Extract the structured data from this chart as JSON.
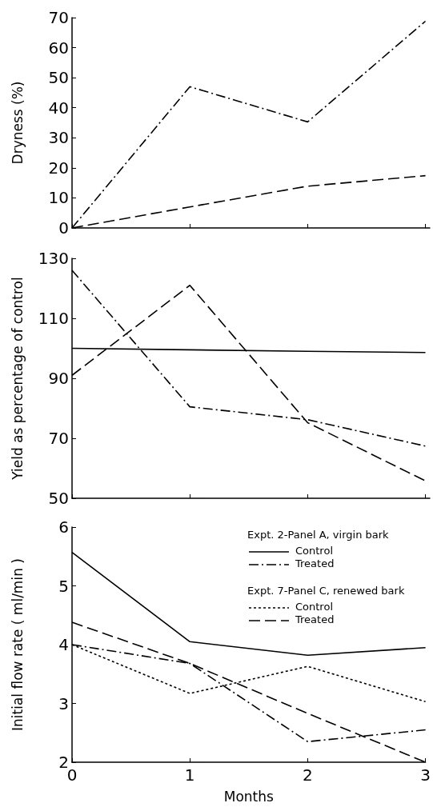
{
  "chart_data": [
    {
      "type": "line",
      "ylabel": "Dryness (%)",
      "x": [
        0,
        1,
        2,
        3
      ],
      "xlim": [
        0,
        3.037
      ],
      "xticks": [
        0,
        1,
        2,
        3
      ],
      "ylim": [
        0,
        70
      ],
      "yticks": [
        0,
        10,
        20,
        30,
        40,
        50,
        60,
        70
      ],
      "tick_labels": "y",
      "marker": "none",
      "grid": false,
      "series": [
        {
          "color": "#000000",
          "line_style": "dashdot",
          "values": [
            0,
            47,
            35.3,
            68.8
          ]
        },
        {
          "color": "#000000",
          "line_style": "dashed",
          "values": [
            0,
            7,
            13.9,
            17.4
          ]
        }
      ]
    },
    {
      "type": "line",
      "ylabel": "Yield as percentage of control",
      "x": [
        0,
        1,
        2,
        3
      ],
      "xlim": [
        0,
        3.037
      ],
      "xticks": [
        0,
        1,
        2,
        3
      ],
      "ylim": [
        50,
        130
      ],
      "yticks": [
        50,
        70,
        90,
        110,
        130
      ],
      "tick_labels": "y",
      "marker": "none",
      "grid": false,
      "series": [
        {
          "color": "#000000",
          "line_style": "solid",
          "values": [
            100,
            99.5,
            99,
            98.6
          ]
        },
        {
          "color": "#000000",
          "line_style": "dashdot",
          "values": [
            126,
            80.5,
            76.2,
            67.4
          ]
        },
        {
          "color": "#000000",
          "line_style": "dashed",
          "values": [
            91,
            121,
            75.2,
            55.8
          ]
        }
      ]
    },
    {
      "type": "line",
      "ylabel": "Initial flow rate ( ml/min )",
      "xlabel": "Months",
      "x": [
        0,
        1,
        2,
        3
      ],
      "xlim": [
        0,
        3
      ],
      "xticks": [
        0,
        1,
        2,
        3
      ],
      "ylim": [
        2,
        6
      ],
      "yticks": [
        2,
        3,
        4,
        5,
        6
      ],
      "marker": "none",
      "grid": false,
      "legend": "top right",
      "annotations": [
        "Expt. 2-Panel A, virgin bark",
        "Expt. 7-Panel C, renewed bark"
      ],
      "series": [
        {
          "name": "Control",
          "color": "#000000",
          "line_style": "solid",
          "values": [
            5.57,
            4.05,
            3.82,
            3.95
          ]
        },
        {
          "name": "Treated",
          "color": "#000000",
          "line_style": "dashdot",
          "values": [
            4.0,
            3.68,
            2.35,
            2.55
          ]
        },
        {
          "name": "Control",
          "color": "#000000",
          "line_style": "dotted",
          "values": [
            4.0,
            3.17,
            3.63,
            3.03
          ]
        },
        {
          "name": "Treated",
          "color": "#000000",
          "line_style": "dashed",
          "values": [
            4.38,
            3.68,
            2.83,
            2.0
          ]
        }
      ]
    }
  ]
}
